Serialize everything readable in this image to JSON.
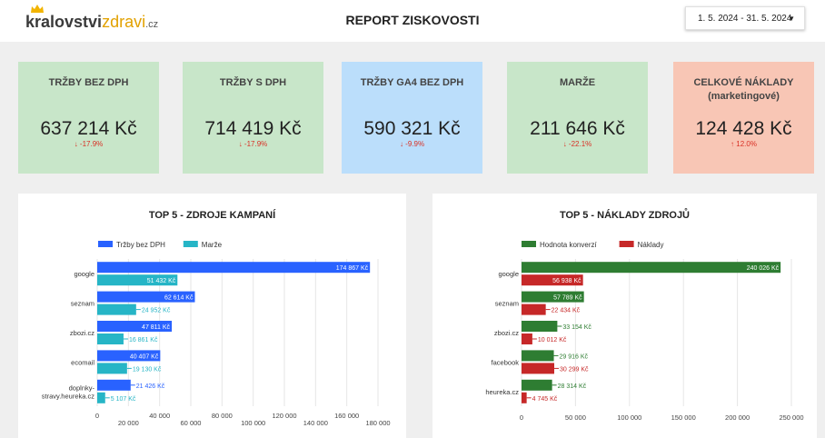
{
  "header": {
    "logo": {
      "part1": "kralovstvi",
      "part2": "zdravi",
      "part3": ".cz"
    },
    "title": "REPORT ZISKOVOSTI",
    "date_range": "1. 5. 2024 - 31. 5. 2024"
  },
  "kpis": [
    {
      "label": "TRŽBY BEZ DPH",
      "value": "637 214 Kč",
      "delta": "↓ -17.9%",
      "color": "#c8e6c9"
    },
    {
      "label": "TRŽBY S DPH",
      "value": "714 419 Kč",
      "delta": "↓ -17.9%",
      "color": "#c8e6c9"
    },
    {
      "label": "TRŽBY GA4 BEZ DPH",
      "value": "590 321 Kč",
      "delta": "↓ -9.9%",
      "color": "#bbdefb"
    },
    {
      "label": "MARŽE",
      "value": "211 646 Kč",
      "delta": "↓ -22.1%",
      "color": "#c8e6c9"
    },
    {
      "label": "CELKOVÉ NÁKLADY (marketingové)",
      "value": "124 428 Kč",
      "delta": "↑ 12.0%",
      "color": "#f8c6b5"
    }
  ],
  "chart_data": [
    {
      "type": "bar",
      "orientation": "horizontal",
      "title": "TOP 5 - ZDROJE KAMPANÍ",
      "categories": [
        "google",
        "seznam",
        "zbozi.cz",
        "ecomail",
        "doplnky-stravy.heureka.cz"
      ],
      "category_lines": [
        [
          "google"
        ],
        [
          "seznam"
        ],
        [
          "zbozi.cz"
        ],
        [
          "ecomail"
        ],
        [
          "doplnky-",
          "stravy.heureka.cz"
        ]
      ],
      "series": [
        {
          "name": "Tržby bez DPH",
          "color": "#2962ff",
          "values": [
            174867,
            62614,
            47811,
            40407,
            21426
          ],
          "labels": [
            "174 867 Kč",
            "62 614 Kč",
            "47 811 Kč",
            "40 407 Kč",
            "21 426 Kč"
          ]
        },
        {
          "name": "Marže",
          "color": "#26b5c6",
          "values": [
            51432,
            24952,
            16861,
            19130,
            5107
          ],
          "labels": [
            "51 432 Kč",
            "24 952 Kč",
            "16 861 Kč",
            "19 130 Kč",
            "5 107 Kč"
          ]
        }
      ],
      "xlim": [
        0,
        180000
      ],
      "xticks": [
        0,
        20000,
        40000,
        60000,
        80000,
        100000,
        120000,
        140000,
        160000,
        180000
      ],
      "xtick_labels": [
        "0",
        "20 000",
        "40 000",
        "60 000",
        "80 000",
        "100 000",
        "120 000",
        "140 000",
        "160 000",
        "180 000"
      ],
      "grid": true,
      "legend": "top-left"
    },
    {
      "type": "bar",
      "orientation": "horizontal",
      "title": "TOP 5 - NÁKLADY ZDROJŮ",
      "categories": [
        "google",
        "seznam",
        "zbozi.cz",
        "facebook",
        "heureka.cz"
      ],
      "category_lines": [
        [
          "google"
        ],
        [
          "seznam"
        ],
        [
          "zbozi.cz"
        ],
        [
          "facebook"
        ],
        [
          "heureka.cz"
        ]
      ],
      "series": [
        {
          "name": "Hodnota konverzí",
          "color": "#2e7d32",
          "values": [
            240026,
            57789,
            33154,
            29916,
            28314
          ],
          "labels": [
            "240 026 Kč",
            "57 789 Kč",
            "33 154 Kč",
            "29 916 Kč",
            "28 314 Kč"
          ]
        },
        {
          "name": "Náklady",
          "color": "#c62828",
          "values": [
            56938,
            22434,
            10012,
            30299,
            4745
          ],
          "labels": [
            "56 938 Kč",
            "22 434 Kč",
            "10 012 Kč",
            "30 299 Kč",
            "4 745 Kč"
          ]
        }
      ],
      "xlim": [
        0,
        250000
      ],
      "xticks": [
        0,
        50000,
        100000,
        150000,
        200000,
        250000
      ],
      "xtick_labels": [
        "0",
        "50 000",
        "100 000",
        "150 000",
        "200 000",
        "250 000"
      ],
      "grid": true,
      "legend": "top-left"
    }
  ]
}
